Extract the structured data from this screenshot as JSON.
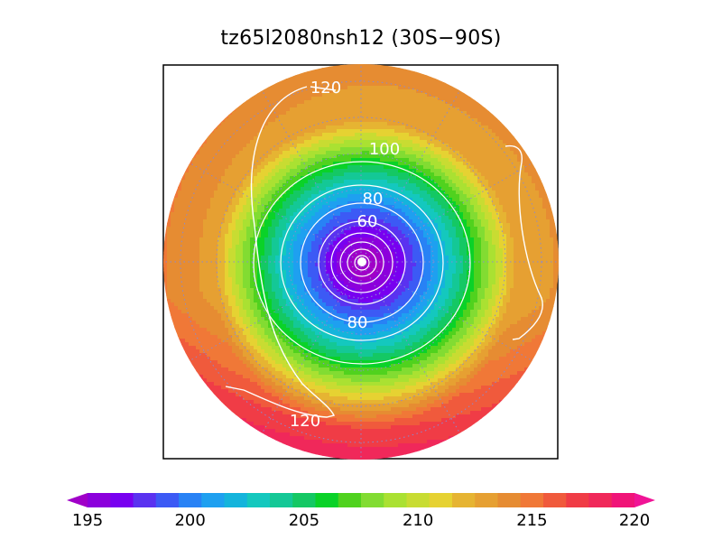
{
  "chart_data": {
    "type": "heatmap",
    "projection": "south-polar-stereographic",
    "title": "tz65l2080nsh12 (30S−90S)",
    "domain": "30S-90S",
    "grid": true,
    "colorbar": {
      "min": 195,
      "max": 220,
      "step": 1,
      "tick_labels": [
        "195",
        "200",
        "205",
        "210",
        "215",
        "220"
      ],
      "colors": [
        "#a000c8",
        "#8c00dc",
        "#7800f0",
        "#5a32f0",
        "#3c5af5",
        "#2882f5",
        "#1ea0f0",
        "#14b4dc",
        "#14c8be",
        "#14c896",
        "#14c864",
        "#0ad228",
        "#50d21e",
        "#82dc32",
        "#aae132",
        "#c8dc32",
        "#e6d232",
        "#e6b432",
        "#e6a032",
        "#e68c32",
        "#f07837",
        "#f05a3c",
        "#f03c46",
        "#f0285a",
        "#f01478",
        "#f01496"
      ],
      "extend": "both"
    },
    "contours": {
      "color": "#ffffff",
      "labels": [
        "120",
        "100",
        "80",
        "60",
        "80",
        "120"
      ],
      "levels": [
        60,
        80,
        100,
        120
      ]
    },
    "field_summary": {
      "center_value": 195,
      "outer_value_south": 218,
      "outer_value_west": 214,
      "outer_value_east": 213
    }
  }
}
